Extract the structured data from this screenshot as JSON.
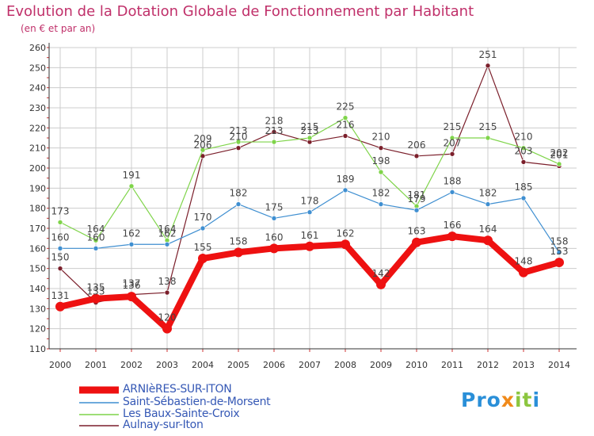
{
  "header": {
    "title": "Evolution de la Dotation Globale de Fonctionnement par Habitant",
    "subtitle": "(en € et par an)"
  },
  "logo": {
    "text": "Proxiti",
    "part1": "Pro",
    "part2": "x",
    "part3": "it",
    "part4": "i"
  },
  "colors": {
    "title": "#c0306a",
    "legend_text": "#3558b5",
    "grid": "#cccccc",
    "axis": "#333333"
  },
  "chart_data": {
    "type": "line",
    "title": "Evolution de la Dotation Globale de Fonctionnement par Habitant",
    "subtitle": "(en € et par an)",
    "xlabel": "",
    "ylabel": "",
    "x": [
      "2000",
      "2001",
      "2002",
      "2003",
      "2004",
      "2005",
      "2006",
      "2007",
      "2008",
      "2009",
      "2010",
      "2011",
      "2012",
      "2013",
      "2014"
    ],
    "ylim": [
      110,
      260
    ],
    "yticks": [
      "110",
      "120",
      "130",
      "140",
      "150",
      "160",
      "170",
      "180",
      "190",
      "200",
      "210",
      "220",
      "230",
      "240",
      "250",
      "260"
    ],
    "grid": true,
    "legend_position": "bottom-left",
    "series": [
      {
        "name": "Aulnay-sur-Iton",
        "color": "#7b1f2b",
        "width": "thin",
        "values": [
          150,
          133,
          137,
          138,
          206,
          210,
          218,
          213,
          216,
          210,
          206,
          207,
          251,
          203,
          201
        ],
        "labels": [
          "150",
          "133",
          "137",
          "138",
          "206",
          "210",
          "218",
          "213",
          "216",
          "210",
          "206",
          "207",
          "251",
          "203",
          "201"
        ]
      },
      {
        "name": "Les Baux-Sainte-Croix",
        "color": "#7fd44a",
        "width": "thin",
        "values": [
          173,
          164,
          191,
          164,
          209,
          213,
          213,
          215,
          225,
          198,
          181,
          215,
          215,
          210,
          202
        ],
        "labels": [
          "173",
          "164",
          "191",
          "164",
          "209",
          "213",
          "213",
          "215",
          "225",
          "198",
          "181",
          "215",
          "215",
          "210",
          "202"
        ]
      },
      {
        "name": "Saint-Sébastien-de-Morsent",
        "color": "#3f8fd1",
        "width": "thin",
        "values": [
          160,
          160,
          162,
          162,
          170,
          182,
          175,
          178,
          189,
          182,
          179,
          188,
          182,
          185,
          158
        ],
        "labels": [
          "160",
          "160",
          "162",
          "162",
          "170",
          "182",
          "175",
          "178",
          "189",
          "182",
          "179",
          "188",
          "182",
          "185",
          "158"
        ]
      },
      {
        "name": "ARNIèRES-SUR-ITON",
        "color": "#ee1111",
        "width": "thick",
        "values": [
          131,
          135,
          136,
          120,
          155,
          158,
          160,
          161,
          162,
          142,
          163,
          166,
          164,
          148,
          153
        ],
        "labels": [
          "131",
          "135",
          "136",
          "120",
          "155",
          "158",
          "160",
          "161",
          "162",
          "142",
          "163",
          "166",
          "164",
          "148",
          "153"
        ]
      }
    ],
    "legend": [
      {
        "name": "ARNIèRES-SUR-ITON",
        "color": "#ee1111",
        "width": "thick"
      },
      {
        "name": "Saint-Sébastien-de-Morsent",
        "color": "#3f8fd1",
        "width": "thin"
      },
      {
        "name": "Les Baux-Sainte-Croix",
        "color": "#7fd44a",
        "width": "thin"
      },
      {
        "name": "Aulnay-sur-Iton",
        "color": "#7b1f2b",
        "width": "thin"
      }
    ]
  }
}
